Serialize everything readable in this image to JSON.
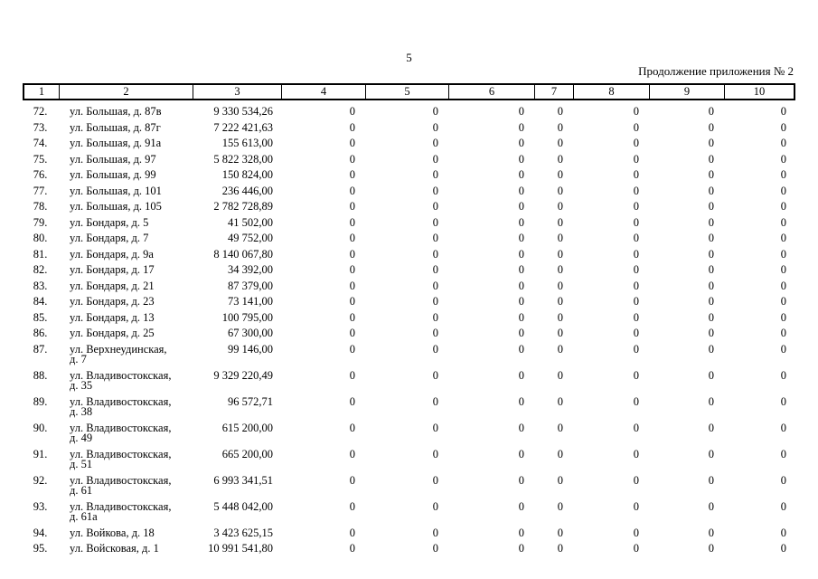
{
  "page": {
    "number": "5",
    "header_right": "Продолжение приложения № 2"
  },
  "table": {
    "columns": [
      "1",
      "2",
      "3",
      "4",
      "5",
      "6",
      "7",
      "8",
      "9",
      "10"
    ],
    "rows": [
      {
        "num": "72.",
        "address": "ул. Большая, д. 87в",
        "address2": "",
        "amount": "9 330 534,26",
        "values": [
          "0",
          "0",
          "0",
          "0",
          "0",
          "0",
          "0"
        ]
      },
      {
        "num": "73.",
        "address": "ул. Большая, д. 87г",
        "address2": "",
        "amount": "7 222 421,63",
        "values": [
          "0",
          "0",
          "0",
          "0",
          "0",
          "0",
          "0"
        ]
      },
      {
        "num": "74.",
        "address": "ул. Большая, д. 91а",
        "address2": "",
        "amount": "155 613,00",
        "values": [
          "0",
          "0",
          "0",
          "0",
          "0",
          "0",
          "0"
        ]
      },
      {
        "num": "75.",
        "address": "ул. Большая, д. 97",
        "address2": "",
        "amount": "5 822 328,00",
        "values": [
          "0",
          "0",
          "0",
          "0",
          "0",
          "0",
          "0"
        ]
      },
      {
        "num": "76.",
        "address": "ул. Большая, д. 99",
        "address2": "",
        "amount": "150 824,00",
        "values": [
          "0",
          "0",
          "0",
          "0",
          "0",
          "0",
          "0"
        ]
      },
      {
        "num": "77.",
        "address": "ул. Большая, д. 101",
        "address2": "",
        "amount": "236 446,00",
        "values": [
          "0",
          "0",
          "0",
          "0",
          "0",
          "0",
          "0"
        ]
      },
      {
        "num": "78.",
        "address": "ул. Большая, д. 105",
        "address2": "",
        "amount": "2 782 728,89",
        "values": [
          "0",
          "0",
          "0",
          "0",
          "0",
          "0",
          "0"
        ]
      },
      {
        "num": "79.",
        "address": "ул. Бондаря, д. 5",
        "address2": "",
        "amount": "41 502,00",
        "values": [
          "0",
          "0",
          "0",
          "0",
          "0",
          "0",
          "0"
        ]
      },
      {
        "num": "80.",
        "address": "ул. Бондаря, д. 7",
        "address2": "",
        "amount": "49 752,00",
        "values": [
          "0",
          "0",
          "0",
          "0",
          "0",
          "0",
          "0"
        ]
      },
      {
        "num": "81.",
        "address": "ул. Бондаря, д. 9а",
        "address2": "",
        "amount": "8 140 067,80",
        "values": [
          "0",
          "0",
          "0",
          "0",
          "0",
          "0",
          "0"
        ]
      },
      {
        "num": "82.",
        "address": "ул. Бондаря, д. 17",
        "address2": "",
        "amount": "34 392,00",
        "values": [
          "0",
          "0",
          "0",
          "0",
          "0",
          "0",
          "0"
        ]
      },
      {
        "num": "83.",
        "address": "ул. Бондаря, д. 21",
        "address2": "",
        "amount": "87 379,00",
        "values": [
          "0",
          "0",
          "0",
          "0",
          "0",
          "0",
          "0"
        ]
      },
      {
        "num": "84.",
        "address": "ул. Бондаря, д. 23",
        "address2": "",
        "amount": "73 141,00",
        "values": [
          "0",
          "0",
          "0",
          "0",
          "0",
          "0",
          "0"
        ]
      },
      {
        "num": "85.",
        "address": "ул. Бондаря, д. 13",
        "address2": "",
        "amount": "100 795,00",
        "values": [
          "0",
          "0",
          "0",
          "0",
          "0",
          "0",
          "0"
        ]
      },
      {
        "num": "86.",
        "address": "ул. Бондаря, д. 25",
        "address2": "",
        "amount": "67 300,00",
        "values": [
          "0",
          "0",
          "0",
          "0",
          "0",
          "0",
          "0"
        ]
      },
      {
        "num": "87.",
        "address": "ул. Верхнеудинская,",
        "address2": "д. 7",
        "amount": "99 146,00",
        "values": [
          "0",
          "0",
          "0",
          "0",
          "0",
          "0",
          "0"
        ]
      },
      {
        "num": "88.",
        "address": "ул. Владивостокская,",
        "address2": "д. 35",
        "amount": "9 329 220,49",
        "values": [
          "0",
          "0",
          "0",
          "0",
          "0",
          "0",
          "0"
        ]
      },
      {
        "num": "89.",
        "address": "ул. Владивостокская,",
        "address2": "д. 38",
        "amount": "96 572,71",
        "values": [
          "0",
          "0",
          "0",
          "0",
          "0",
          "0",
          "0"
        ]
      },
      {
        "num": "90.",
        "address": "ул. Владивостокская,",
        "address2": "д. 49",
        "amount": "615 200,00",
        "values": [
          "0",
          "0",
          "0",
          "0",
          "0",
          "0",
          "0"
        ]
      },
      {
        "num": "91.",
        "address": "ул. Владивостокская,",
        "address2": "д. 51",
        "amount": "665 200,00",
        "values": [
          "0",
          "0",
          "0",
          "0",
          "0",
          "0",
          "0"
        ]
      },
      {
        "num": "92.",
        "address": "ул. Владивостокская,",
        "address2": "д. 61",
        "amount": "6 993 341,51",
        "values": [
          "0",
          "0",
          "0",
          "0",
          "0",
          "0",
          "0"
        ]
      },
      {
        "num": "93.",
        "address": "ул. Владивостокская,",
        "address2": "д. 61а",
        "amount": "5 448 042,00",
        "values": [
          "0",
          "0",
          "0",
          "0",
          "0",
          "0",
          "0"
        ]
      },
      {
        "num": "94.",
        "address": "ул. Войкова, д. 18",
        "address2": "",
        "amount": "3 423 625,15",
        "values": [
          "0",
          "0",
          "0",
          "0",
          "0",
          "0",
          "0"
        ]
      },
      {
        "num": "95.",
        "address": "ул. Войсковая, д. 1",
        "address2": "",
        "amount": "10 991 541,80",
        "values": [
          "0",
          "0",
          "0",
          "0",
          "0",
          "0",
          "0"
        ]
      }
    ]
  }
}
